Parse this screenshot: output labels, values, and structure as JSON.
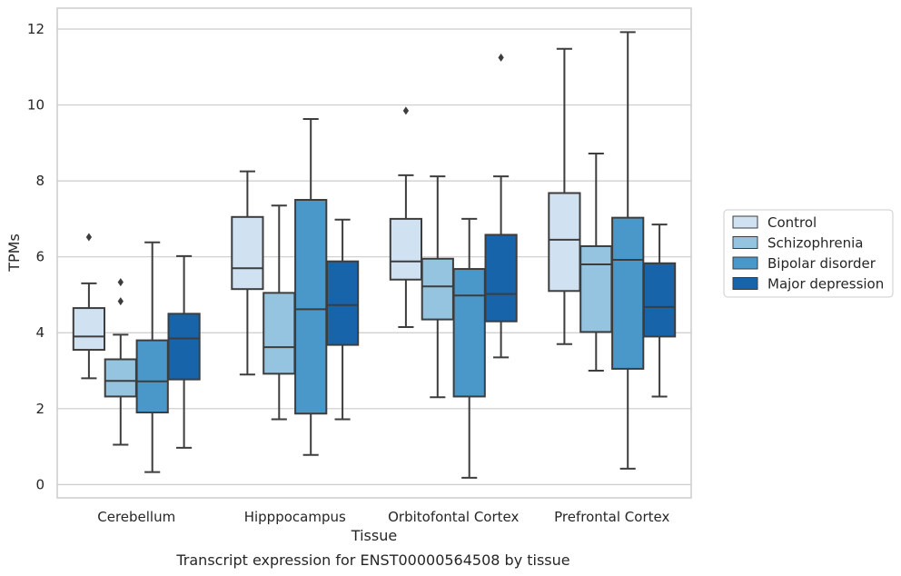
{
  "chart_data": {
    "type": "box",
    "xlabel": "Tissue",
    "ylabel": "TPMs",
    "caption": "Transcript expression for ENST00000564508 by tissue",
    "ylim": [
      -0.35,
      12.55
    ],
    "yticks": [
      0,
      2,
      4,
      6,
      8,
      10,
      12
    ],
    "grid": "horizontal",
    "legend_position": "right",
    "categories": [
      "Cerebellum",
      "Hipppocampus",
      "Orbitofontal Cortex",
      "Prefrontal Cortex"
    ],
    "series": [
      {
        "name": "Control",
        "color": "#d0e1f2",
        "boxes": [
          {
            "whisker_low": 2.8,
            "q1": 3.55,
            "median": 3.9,
            "q3": 4.65,
            "whisker_high": 5.3,
            "outliers": [
              6.52
            ]
          },
          {
            "whisker_low": 2.9,
            "q1": 5.15,
            "median": 5.7,
            "q3": 7.05,
            "whisker_high": 8.25,
            "outliers": []
          },
          {
            "whisker_low": 4.15,
            "q1": 5.4,
            "median": 5.88,
            "q3": 7.0,
            "whisker_high": 8.15,
            "outliers": [
              9.85
            ]
          },
          {
            "whisker_low": 3.7,
            "q1": 5.1,
            "median": 6.45,
            "q3": 7.68,
            "whisker_high": 11.48,
            "outliers": []
          }
        ]
      },
      {
        "name": "Schizophrenia",
        "color": "#94c4df",
        "boxes": [
          {
            "whisker_low": 1.05,
            "q1": 2.32,
            "median": 2.73,
            "q3": 3.3,
            "whisker_high": 3.95,
            "outliers": [
              4.83,
              5.33
            ]
          },
          {
            "whisker_low": 1.72,
            "q1": 2.92,
            "median": 3.62,
            "q3": 5.05,
            "whisker_high": 7.35,
            "outliers": []
          },
          {
            "whisker_low": 2.3,
            "q1": 4.35,
            "median": 5.22,
            "q3": 5.95,
            "whisker_high": 8.12,
            "outliers": []
          },
          {
            "whisker_low": 3.0,
            "q1": 4.02,
            "median": 5.8,
            "q3": 6.28,
            "whisker_high": 8.72,
            "outliers": []
          }
        ]
      },
      {
        "name": "Bipolar disorder",
        "color": "#4a98c9",
        "boxes": [
          {
            "whisker_low": 0.33,
            "q1": 1.9,
            "median": 2.72,
            "q3": 3.8,
            "whisker_high": 6.38,
            "outliers": []
          },
          {
            "whisker_low": 0.78,
            "q1": 1.87,
            "median": 4.62,
            "q3": 7.5,
            "whisker_high": 9.63,
            "outliers": []
          },
          {
            "whisker_low": 0.18,
            "q1": 2.32,
            "median": 4.98,
            "q3": 5.68,
            "whisker_high": 7.0,
            "outliers": []
          },
          {
            "whisker_low": 0.42,
            "q1": 3.05,
            "median": 5.92,
            "q3": 7.03,
            "whisker_high": 11.92,
            "outliers": []
          }
        ]
      },
      {
        "name": "Major depression",
        "color": "#1764ab",
        "boxes": [
          {
            "whisker_low": 0.97,
            "q1": 2.77,
            "median": 3.85,
            "q3": 4.5,
            "whisker_high": 6.02,
            "outliers": []
          },
          {
            "whisker_low": 1.72,
            "q1": 3.68,
            "median": 4.73,
            "q3": 5.88,
            "whisker_high": 6.98,
            "outliers": []
          },
          {
            "whisker_low": 3.35,
            "q1": 4.3,
            "median": 5.02,
            "q3": 6.58,
            "whisker_high": 8.12,
            "outliers": [
              11.25
            ]
          },
          {
            "whisker_low": 2.32,
            "q1": 3.9,
            "median": 4.68,
            "q3": 5.83,
            "whisker_high": 6.85,
            "outliers": []
          }
        ]
      }
    ]
  }
}
